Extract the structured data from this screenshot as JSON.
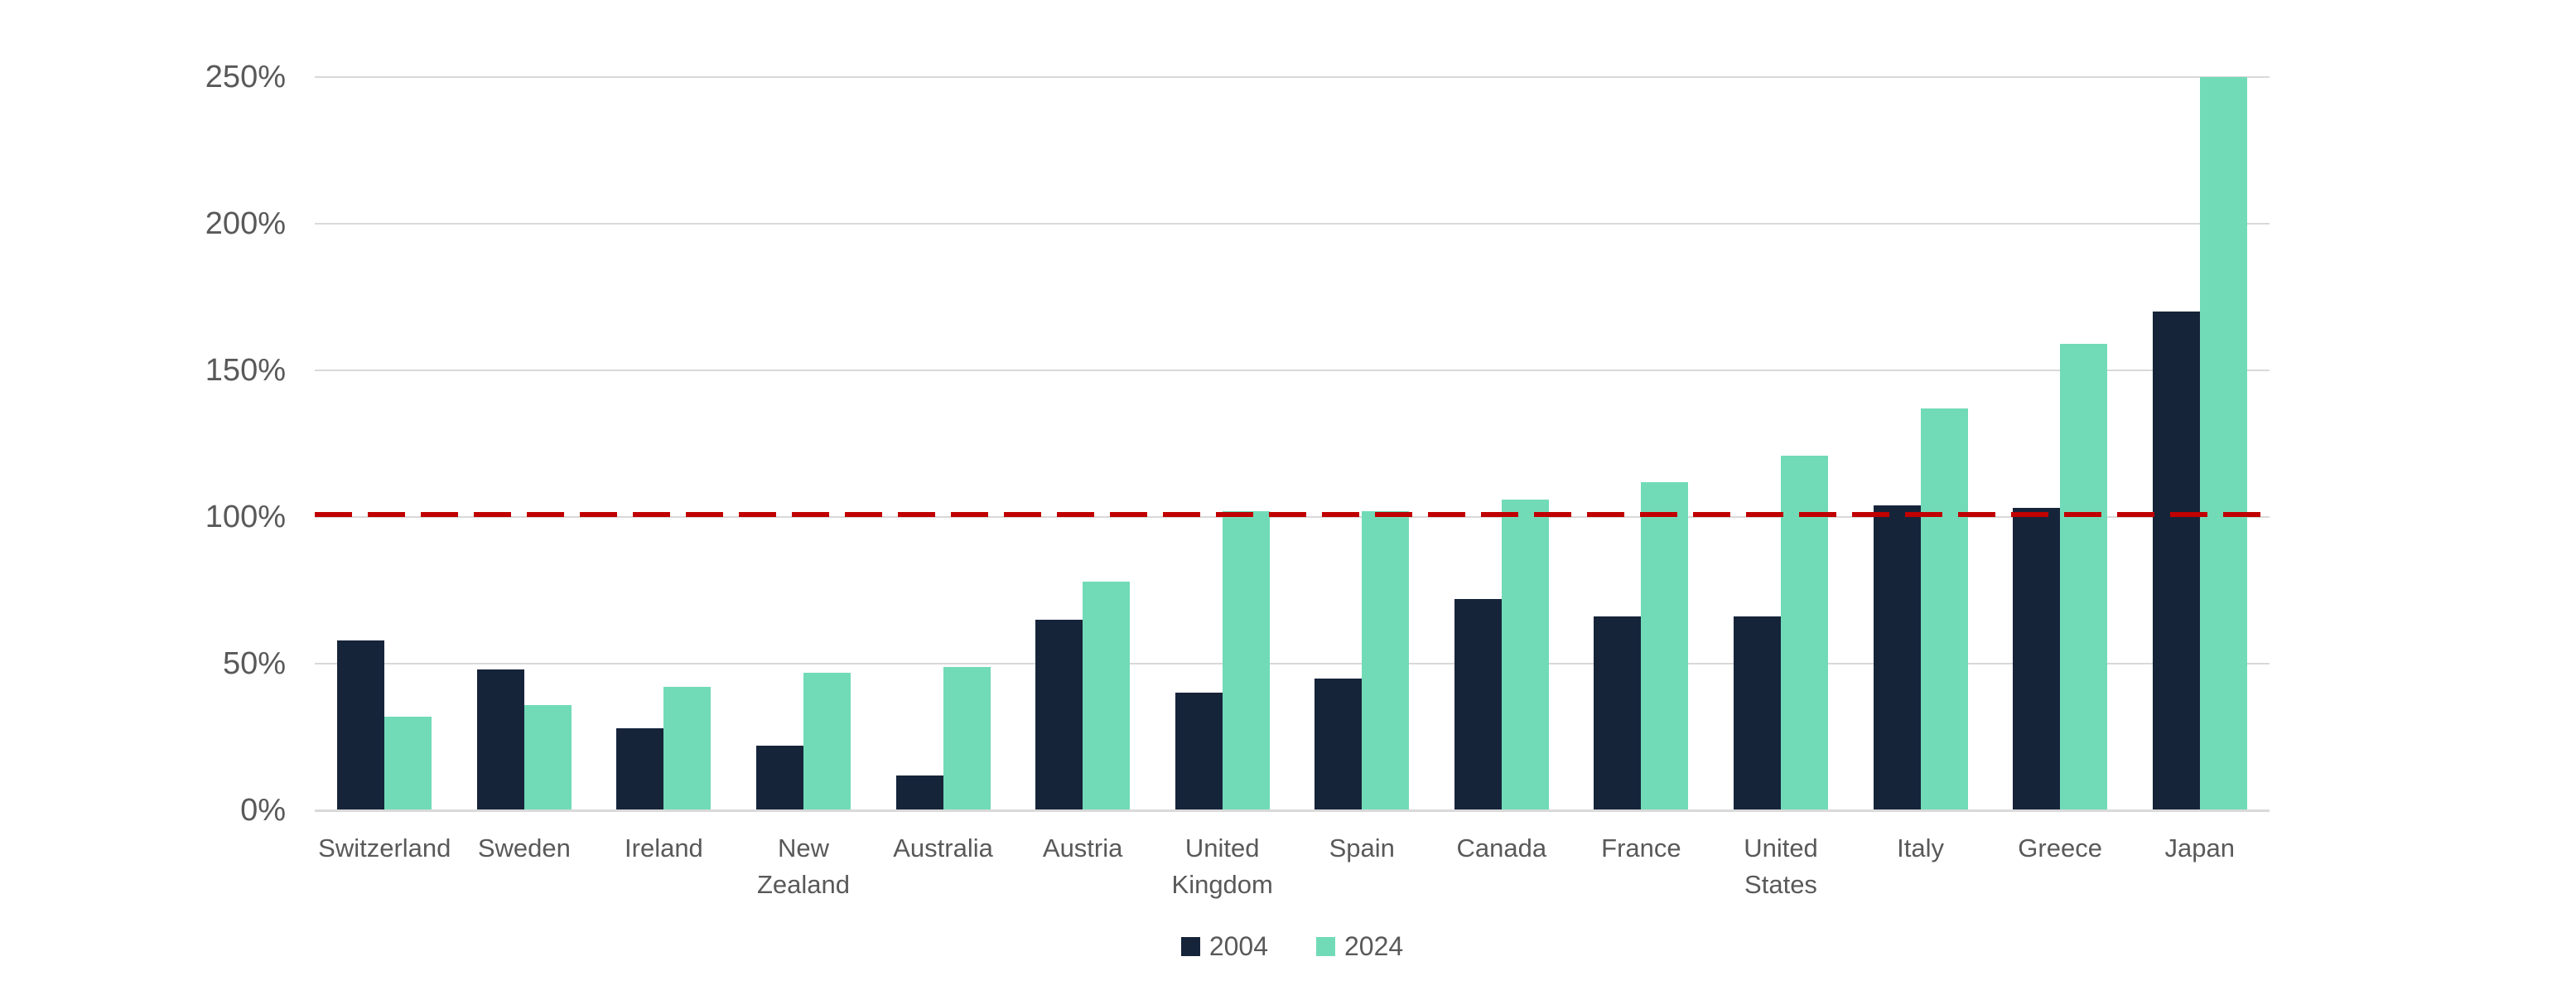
{
  "chart_data": {
    "type": "bar",
    "title": "",
    "categories": [
      "Switzerland",
      "Sweden",
      "Ireland",
      "New\nZealand",
      "Australia",
      "Austria",
      "United\nKingdom",
      "Spain",
      "Canada",
      "France",
      "United\nStates",
      "Italy",
      "Greece",
      "Japan"
    ],
    "series": [
      {
        "name": "2004",
        "color": "#16243A",
        "values": [
          58,
          48,
          28,
          22,
          12,
          65,
          40,
          45,
          72,
          66,
          66,
          104,
          103,
          170
        ]
      },
      {
        "name": "2024",
        "color": "#71DBB8",
        "values": [
          32,
          36,
          42,
          47,
          49,
          78,
          102,
          102,
          106,
          112,
          121,
          137,
          159,
          250
        ]
      }
    ],
    "y_ticks": [
      {
        "value": 0,
        "label": "0%"
      },
      {
        "value": 50,
        "label": "50%"
      },
      {
        "value": 100,
        "label": "100%"
      },
      {
        "value": 150,
        "label": "150%"
      },
      {
        "value": 200,
        "label": "200%"
      },
      {
        "value": 250,
        "label": "250%"
      }
    ],
    "ylim": [
      0,
      250
    ],
    "xlabel": "",
    "ylabel": "",
    "grid": true,
    "legend_position": "bottom",
    "reference_line": {
      "value": 100,
      "style": "dashed",
      "color": "#C00000"
    }
  },
  "colors": {
    "series_2004": "#16243A",
    "series_2024": "#71DBB8",
    "reference_red": "#C00000",
    "gridline": "#D9D9D9",
    "axis_text": "#595959",
    "background": "#FFFFFF"
  },
  "legend": {
    "items": [
      {
        "label": "2004"
      },
      {
        "label": "2024"
      }
    ]
  }
}
